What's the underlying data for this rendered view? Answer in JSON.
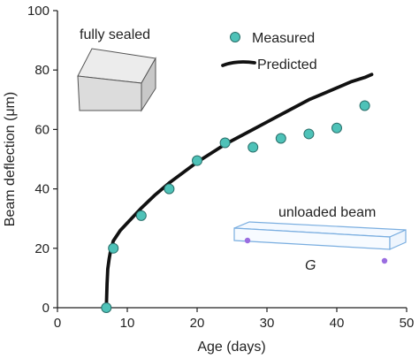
{
  "chart_data": {
    "type": "scatter",
    "title": "",
    "xlabel": "Age (days)",
    "ylabel": "Beam deflection (μm)",
    "xlim": [
      0,
      50
    ],
    "ylim": [
      0,
      100
    ],
    "xticks": [
      "0",
      "10",
      "20",
      "30",
      "40",
      "50"
    ],
    "yticks": [
      "0",
      "20",
      "40",
      "60",
      "80",
      "100"
    ],
    "grid": false,
    "legend": "top-right",
    "series": [
      {
        "name": "Measured",
        "type": "scatter",
        "color": "#4ec2b8",
        "x": [
          7,
          8,
          12,
          16,
          20,
          24,
          28,
          32,
          36,
          40,
          44
        ],
        "y": [
          0,
          20,
          31,
          40,
          49.5,
          55.5,
          54,
          57,
          58.5,
          60.5,
          68
        ]
      },
      {
        "name": "Predicted",
        "type": "line",
        "color": "#111111",
        "x": [
          7,
          7.05,
          7.1,
          7.2,
          7.4,
          7.6,
          8,
          9,
          10,
          12,
          14,
          16,
          18,
          20,
          22,
          24,
          26,
          28,
          30,
          32,
          34,
          36,
          38,
          40,
          42,
          44,
          45
        ],
        "y": [
          0,
          4,
          8,
          13,
          16.5,
          19,
          22.5,
          26,
          28.5,
          33.5,
          38,
          42,
          45.5,
          49,
          52,
          55,
          57.5,
          60,
          62.5,
          65,
          67.5,
          70,
          72,
          74,
          76,
          77.5,
          78.5
        ]
      }
    ],
    "annotations": [
      "fully sealed",
      "unloaded beam",
      "G"
    ]
  }
}
